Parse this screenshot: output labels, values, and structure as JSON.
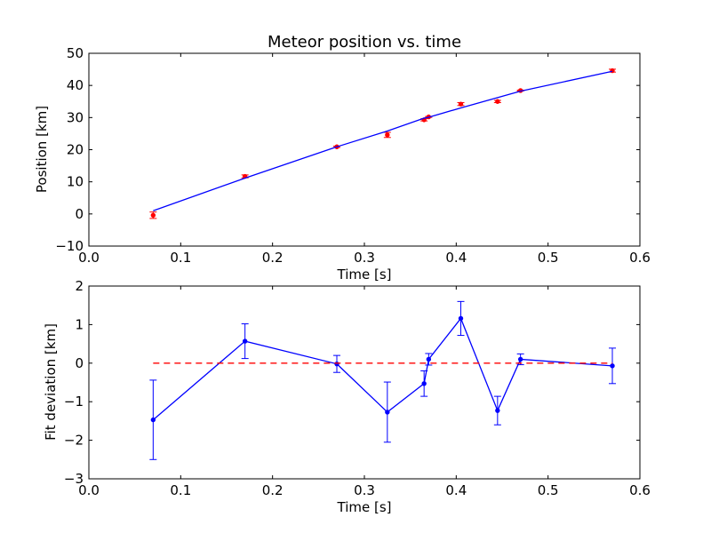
{
  "chart_data": [
    {
      "type": "scatter",
      "title": "Meteor position vs. time",
      "xlabel": "Time [s]",
      "ylabel": "Position [km]",
      "xlim": [
        0.0,
        0.6
      ],
      "ylim": [
        -10,
        50
      ],
      "xticks": [
        "0.0",
        "0.1",
        "0.2",
        "0.3",
        "0.4",
        "0.5",
        "0.6"
      ],
      "yticks": [
        "−10",
        "0",
        "10",
        "20",
        "30",
        "40",
        "50"
      ],
      "grid": false,
      "series": [
        {
          "kind": "errorbar-points",
          "color": "#ff0000",
          "x": [
            0.07,
            0.17,
            0.27,
            0.325,
            0.365,
            0.37,
            0.405,
            0.445,
            0.47,
            0.57
          ],
          "y": [
            -0.4,
            11.7,
            20.9,
            24.6,
            29.3,
            30.2,
            34.2,
            35.0,
            38.4,
            44.6
          ],
          "yerr": [
            1.0,
            0.45,
            0.2,
            0.8,
            0.35,
            0.15,
            0.45,
            0.35,
            0.15,
            0.45
          ]
        },
        {
          "kind": "line",
          "color": "#0000ff",
          "x": [
            0.07,
            0.17,
            0.27,
            0.325,
            0.365,
            0.37,
            0.405,
            0.445,
            0.47,
            0.57
          ],
          "y": [
            1.0,
            11.15,
            20.9,
            25.8,
            29.8,
            30.1,
            33.0,
            36.2,
            38.2,
            44.4
          ]
        }
      ]
    },
    {
      "type": "line",
      "title": "",
      "xlabel": "Time [s]",
      "ylabel": "Fit deviation [km]",
      "xlim": [
        0.0,
        0.6
      ],
      "ylim": [
        -3,
        2
      ],
      "xticks": [
        "0.0",
        "0.1",
        "0.2",
        "0.3",
        "0.4",
        "0.5",
        "0.6"
      ],
      "yticks": [
        "−3",
        "−2",
        "−1",
        "0",
        "1",
        "2"
      ],
      "grid": false,
      "series": [
        {
          "kind": "errorbar-line",
          "color": "#0000ff",
          "x": [
            0.07,
            0.17,
            0.27,
            0.325,
            0.365,
            0.37,
            0.405,
            0.445,
            0.47,
            0.57
          ],
          "y": [
            -1.47,
            0.57,
            -0.02,
            -1.27,
            -0.53,
            0.1,
            1.16,
            -1.23,
            0.1,
            -0.07
          ],
          "yerr": [
            1.03,
            0.45,
            0.22,
            0.78,
            0.33,
            0.15,
            0.44,
            0.37,
            0.14,
            0.46
          ]
        },
        {
          "kind": "dashed-line",
          "color": "#ff0000",
          "x": [
            0.07,
            0.57
          ],
          "y": [
            0,
            0
          ]
        }
      ]
    }
  ]
}
